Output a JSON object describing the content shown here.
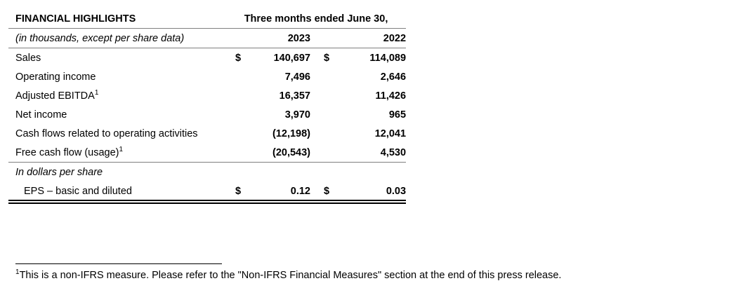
{
  "table": {
    "title": "FINANCIAL HIGHLIGHTS",
    "subtitle": "(in thousands, except per share data)",
    "period_header": "Three months ended June 30,",
    "year_current": "2023",
    "year_prior": "2022",
    "rows": [
      {
        "label": "Sales",
        "sup": "",
        "cur_current": "$",
        "current": "140,697",
        "cur_prior": "$",
        "prior": "114,089"
      },
      {
        "label": "Operating income",
        "sup": "",
        "cur_current": "",
        "current": "7,496",
        "cur_prior": "",
        "prior": "2,646"
      },
      {
        "label": "Adjusted EBITDA",
        "sup": "1",
        "cur_current": "",
        "current": "16,357",
        "cur_prior": "",
        "prior": "11,426"
      },
      {
        "label": "Net income",
        "sup": "",
        "cur_current": "",
        "current": "3,970",
        "cur_prior": "",
        "prior": "965"
      },
      {
        "label": "Cash flows related to operating activities",
        "sup": "",
        "cur_current": "",
        "current": "(12,198)",
        "cur_prior": "",
        "prior": "12,041"
      },
      {
        "label": "Free cash flow (usage)",
        "sup": "1",
        "cur_current": "",
        "current": "(20,543)",
        "cur_prior": "",
        "prior": "4,530"
      }
    ],
    "per_share_header": "In dollars per share",
    "eps": {
      "label": "EPS – basic and diluted",
      "cur_current": "$",
      "current": "0.12",
      "cur_prior": "$",
      "prior": "0.03"
    }
  },
  "footnote": {
    "marker": "1",
    "text": "This is a non-IFRS measure. Please refer to the \"Non-IFRS Financial Measures\" section at the end of this press release."
  }
}
